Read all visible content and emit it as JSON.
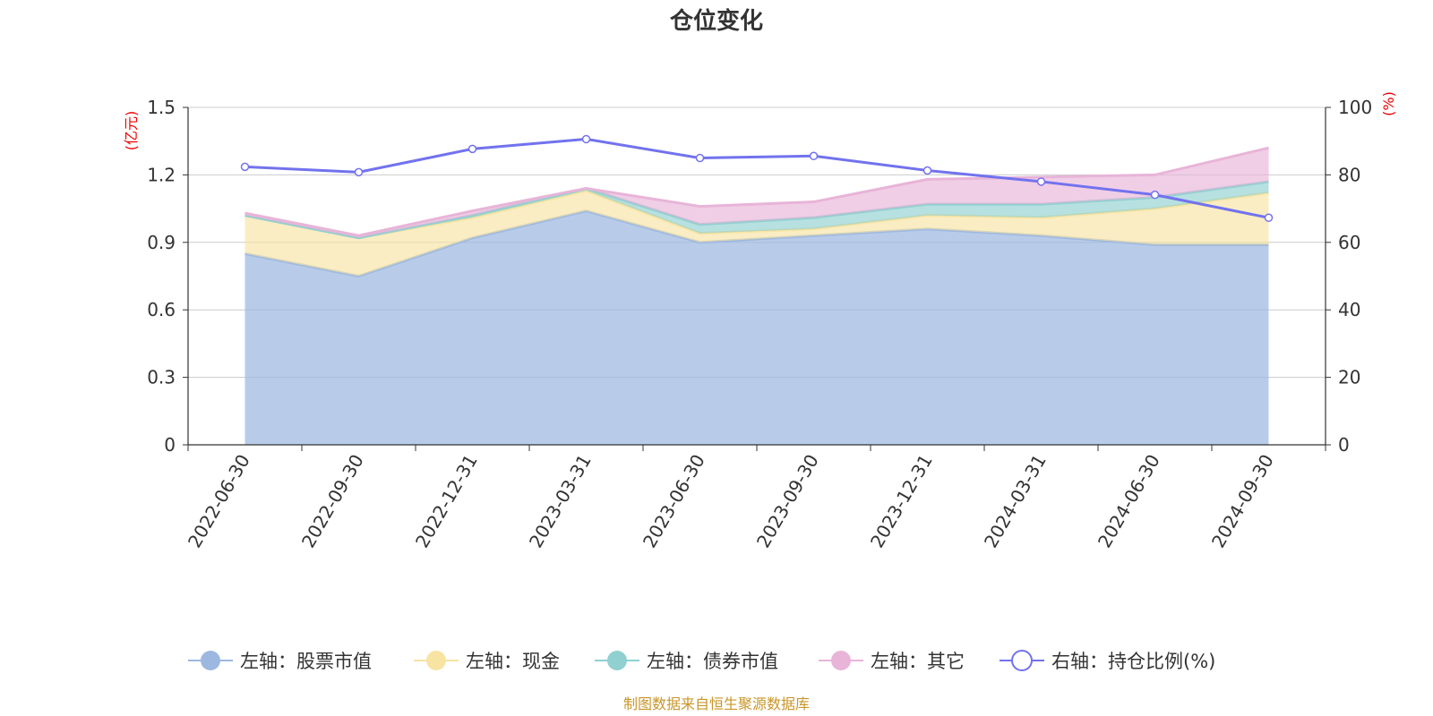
{
  "chart_data": {
    "type": "area",
    "title": "仓位变化",
    "categories": [
      "2022-06-30",
      "2022-09-30",
      "2022-12-31",
      "2023-03-31",
      "2023-06-30",
      "2023-09-30",
      "2023-12-31",
      "2024-03-31",
      "2024-06-30",
      "2024-09-30"
    ],
    "left_axis": {
      "unit": "(亿元)",
      "ylim": [
        0,
        1.5
      ],
      "ticks": [
        "0",
        "0.3",
        "0.6",
        "0.9",
        "1.2",
        "1.5"
      ]
    },
    "right_axis": {
      "unit": "(%)",
      "ylim": [
        0,
        100
      ],
      "ticks": [
        "0",
        "20",
        "40",
        "60",
        "80",
        "100"
      ]
    },
    "grid": true,
    "legend_position": "bottom",
    "series": [
      {
        "name": "左轴：股票市值",
        "axis": "left",
        "kind": "stacked-area",
        "color": "#9db8e0",
        "values": [
          0.85,
          0.75,
          0.92,
          1.04,
          0.9,
          0.93,
          0.96,
          0.93,
          0.89,
          0.89
        ]
      },
      {
        "name": "左轴：现金",
        "axis": "left",
        "kind": "stacked-area",
        "color": "#f7e4a3",
        "values": [
          0.17,
          0.17,
          0.09,
          0.09,
          0.04,
          0.03,
          0.06,
          0.08,
          0.16,
          0.23
        ]
      },
      {
        "name": "左轴：债券市值",
        "axis": "left",
        "kind": "stacked-area",
        "color": "#90d0d0",
        "values": [
          0.0,
          0.0,
          0.01,
          0.01,
          0.04,
          0.05,
          0.05,
          0.06,
          0.05,
          0.05
        ]
      },
      {
        "name": "左轴：其它",
        "axis": "left",
        "kind": "stacked-area",
        "color": "#e8b4d8",
        "values": [
          0.01,
          0.01,
          0.02,
          0.0,
          0.08,
          0.07,
          0.11,
          0.12,
          0.1,
          0.15
        ]
      },
      {
        "name": "右轴：持仓比例(%)",
        "axis": "right",
        "kind": "line",
        "color": "#7272ee",
        "values": [
          82.4,
          80.8,
          87.7,
          90.6,
          85.0,
          85.6,
          81.3,
          78.0,
          74.1,
          67.3
        ]
      }
    ],
    "source": "制图数据来自恒生聚源数据库"
  }
}
